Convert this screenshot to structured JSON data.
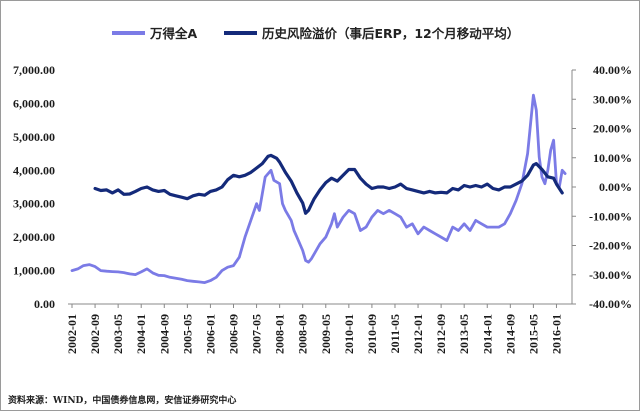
{
  "chart_data": {
    "type": "line",
    "title": "",
    "xlabel": "",
    "ylabel": "",
    "x_ticks": [
      "2002-01",
      "2002-09",
      "2003-05",
      "2004-01",
      "2004-09",
      "2005-05",
      "2006-01",
      "2006-09",
      "2007-05",
      "2008-01",
      "2008-09",
      "2009-05",
      "2010-01",
      "2010-09",
      "2011-05",
      "2012-01",
      "2012-09",
      "2013-05",
      "2014-01",
      "2014-09",
      "2015-05",
      "2016-01"
    ],
    "y_left": {
      "min": 0,
      "max": 7000,
      "ticks": [
        "0.00",
        "1,000.00",
        "2,000.00",
        "3,000.00",
        "4,000.00",
        "5,000.00",
        "6,000.00",
        "7,000.00"
      ]
    },
    "y_right": {
      "min": -40,
      "max": 40,
      "ticks": [
        "-40.00%",
        "-30.00%",
        "-20.00%",
        "-10.00%",
        "0.00%",
        "10.00%",
        "20.00%",
        "30.00%",
        "40.00%"
      ]
    },
    "legend_position": "top",
    "grid": false,
    "series": [
      {
        "name": "万得全A",
        "axis": "left",
        "color": "#7b7be6",
        "points": [
          [
            "2002-01",
            1000
          ],
          [
            "2002-03",
            1050
          ],
          [
            "2002-05",
            1150
          ],
          [
            "2002-07",
            1180
          ],
          [
            "2002-09",
            1120
          ],
          [
            "2002-11",
            1000
          ],
          [
            "2003-01",
            980
          ],
          [
            "2003-03",
            970
          ],
          [
            "2003-05",
            960
          ],
          [
            "2003-07",
            940
          ],
          [
            "2003-09",
            900
          ],
          [
            "2003-11",
            880
          ],
          [
            "2004-01",
            960
          ],
          [
            "2004-03",
            1050
          ],
          [
            "2004-05",
            930
          ],
          [
            "2004-07",
            860
          ],
          [
            "2004-09",
            850
          ],
          [
            "2004-11",
            800
          ],
          [
            "2005-01",
            770
          ],
          [
            "2005-03",
            740
          ],
          [
            "2005-05",
            700
          ],
          [
            "2005-07",
            680
          ],
          [
            "2005-09",
            660
          ],
          [
            "2005-11",
            640
          ],
          [
            "2006-01",
            700
          ],
          [
            "2006-03",
            800
          ],
          [
            "2006-05",
            1000
          ],
          [
            "2006-07",
            1100
          ],
          [
            "2006-09",
            1150
          ],
          [
            "2006-11",
            1400
          ],
          [
            "2007-01",
            2000
          ],
          [
            "2007-03",
            2500
          ],
          [
            "2007-05",
            3000
          ],
          [
            "2007-06",
            2800
          ],
          [
            "2007-07",
            3300
          ],
          [
            "2007-08",
            3800
          ],
          [
            "2007-10",
            4000
          ],
          [
            "2007-11",
            3700
          ],
          [
            "2008-01",
            3600
          ],
          [
            "2008-02",
            3000
          ],
          [
            "2008-03",
            2800
          ],
          [
            "2008-05",
            2500
          ],
          [
            "2008-06",
            2200
          ],
          [
            "2008-07",
            2000
          ],
          [
            "2008-09",
            1600
          ],
          [
            "2008-10",
            1300
          ],
          [
            "2008-11",
            1250
          ],
          [
            "2008-12",
            1350
          ],
          [
            "2009-01",
            1500
          ],
          [
            "2009-03",
            1800
          ],
          [
            "2009-05",
            2000
          ],
          [
            "2009-07",
            2400
          ],
          [
            "2009-08",
            2700
          ],
          [
            "2009-09",
            2300
          ],
          [
            "2009-11",
            2600
          ],
          [
            "2010-01",
            2800
          ],
          [
            "2010-03",
            2700
          ],
          [
            "2010-05",
            2200
          ],
          [
            "2010-07",
            2300
          ],
          [
            "2010-09",
            2600
          ],
          [
            "2010-11",
            2800
          ],
          [
            "2011-01",
            2700
          ],
          [
            "2011-03",
            2800
          ],
          [
            "2011-05",
            2700
          ],
          [
            "2011-07",
            2600
          ],
          [
            "2011-09",
            2300
          ],
          [
            "2011-11",
            2400
          ],
          [
            "2012-01",
            2100
          ],
          [
            "2012-03",
            2300
          ],
          [
            "2012-05",
            2200
          ],
          [
            "2012-07",
            2100
          ],
          [
            "2012-09",
            2000
          ],
          [
            "2012-11",
            1900
          ],
          [
            "2013-01",
            2300
          ],
          [
            "2013-03",
            2200
          ],
          [
            "2013-05",
            2400
          ],
          [
            "2013-07",
            2200
          ],
          [
            "2013-09",
            2500
          ],
          [
            "2013-11",
            2400
          ],
          [
            "2014-01",
            2300
          ],
          [
            "2014-03",
            2300
          ],
          [
            "2014-05",
            2300
          ],
          [
            "2014-07",
            2400
          ],
          [
            "2014-09",
            2700
          ],
          [
            "2014-11",
            3100
          ],
          [
            "2015-01",
            3600
          ],
          [
            "2015-03",
            4500
          ],
          [
            "2015-05",
            6250
          ],
          [
            "2015-06",
            5800
          ],
          [
            "2015-07",
            4400
          ],
          [
            "2015-08",
            3800
          ],
          [
            "2015-09",
            3600
          ],
          [
            "2015-10",
            4000
          ],
          [
            "2015-11",
            4600
          ],
          [
            "2015-12",
            4900
          ],
          [
            "2016-01",
            3600
          ],
          [
            "2016-02",
            3500
          ],
          [
            "2016-03",
            4000
          ],
          [
            "2016-04",
            3900
          ]
        ]
      },
      {
        "name": "历史风险溢价（事后ERP，12个月移动平均）",
        "axis": "right",
        "color": "#142a7a",
        "points": [
          [
            "2002-09",
            -0.5
          ],
          [
            "2002-11",
            -1.2
          ],
          [
            "2003-01",
            -1.0
          ],
          [
            "2003-03",
            -2.0
          ],
          [
            "2003-05",
            -1.0
          ],
          [
            "2003-07",
            -2.5
          ],
          [
            "2003-09",
            -2.4
          ],
          [
            "2003-11",
            -1.5
          ],
          [
            "2004-01",
            -0.5
          ],
          [
            "2004-03",
            0.0
          ],
          [
            "2004-05",
            -1.0
          ],
          [
            "2004-07",
            -1.5
          ],
          [
            "2004-09",
            -1.2
          ],
          [
            "2004-11",
            -2.5
          ],
          [
            "2005-01",
            -3.0
          ],
          [
            "2005-03",
            -3.5
          ],
          [
            "2005-05",
            -4.0
          ],
          [
            "2005-07",
            -3.0
          ],
          [
            "2005-09",
            -2.5
          ],
          [
            "2005-11",
            -2.8
          ],
          [
            "2006-01",
            -1.5
          ],
          [
            "2006-03",
            -1.0
          ],
          [
            "2006-05",
            0.0
          ],
          [
            "2006-07",
            2.5
          ],
          [
            "2006-09",
            4.0
          ],
          [
            "2006-11",
            3.5
          ],
          [
            "2007-01",
            4.0
          ],
          [
            "2007-03",
            5.0
          ],
          [
            "2007-05",
            6.5
          ],
          [
            "2007-07",
            8.0
          ],
          [
            "2007-09",
            10.5
          ],
          [
            "2007-10",
            10.8
          ],
          [
            "2007-12",
            9.8
          ],
          [
            "2008-01",
            8.5
          ],
          [
            "2008-03",
            5.0
          ],
          [
            "2008-05",
            2.0
          ],
          [
            "2008-07",
            -2.0
          ],
          [
            "2008-09",
            -5.5
          ],
          [
            "2008-10",
            -9.0
          ],
          [
            "2008-11",
            -8.0
          ],
          [
            "2008-12",
            -6.0
          ],
          [
            "2009-01",
            -4.0
          ],
          [
            "2009-03",
            -1.0
          ],
          [
            "2009-05",
            1.5
          ],
          [
            "2009-07",
            3.0
          ],
          [
            "2009-09",
            2.0
          ],
          [
            "2009-11",
            4.0
          ],
          [
            "2010-01",
            6.0
          ],
          [
            "2010-03",
            6.0
          ],
          [
            "2010-05",
            3.0
          ],
          [
            "2010-07",
            1.0
          ],
          [
            "2010-09",
            -0.5
          ],
          [
            "2010-11",
            0.0
          ],
          [
            "2011-01",
            0.0
          ],
          [
            "2011-03",
            -0.5
          ],
          [
            "2011-05",
            0.0
          ],
          [
            "2011-07",
            1.0
          ],
          [
            "2011-09",
            -0.5
          ],
          [
            "2011-11",
            -1.0
          ],
          [
            "2012-01",
            -1.5
          ],
          [
            "2012-03",
            -2.0
          ],
          [
            "2012-05",
            -1.5
          ],
          [
            "2012-07",
            -2.0
          ],
          [
            "2012-09",
            -1.8
          ],
          [
            "2012-11",
            -2.0
          ],
          [
            "2013-01",
            -0.5
          ],
          [
            "2013-03",
            -1.0
          ],
          [
            "2013-05",
            0.5
          ],
          [
            "2013-07",
            0.0
          ],
          [
            "2013-09",
            0.5
          ],
          [
            "2013-11",
            0.0
          ],
          [
            "2014-01",
            1.0
          ],
          [
            "2014-03",
            -0.5
          ],
          [
            "2014-05",
            -1.0
          ],
          [
            "2014-07",
            0.0
          ],
          [
            "2014-09",
            0.0
          ],
          [
            "2014-11",
            1.0
          ],
          [
            "2015-01",
            2.0
          ],
          [
            "2015-03",
            4.0
          ],
          [
            "2015-05",
            7.5
          ],
          [
            "2015-06",
            8.0
          ],
          [
            "2015-08",
            6.0
          ],
          [
            "2015-10",
            3.5
          ],
          [
            "2015-12",
            3.0
          ],
          [
            "2016-01",
            1.0
          ],
          [
            "2016-03",
            -2.0
          ]
        ]
      }
    ]
  },
  "source_note": "资料来源：WIND，中国债券信息网，安信证券研究中心"
}
